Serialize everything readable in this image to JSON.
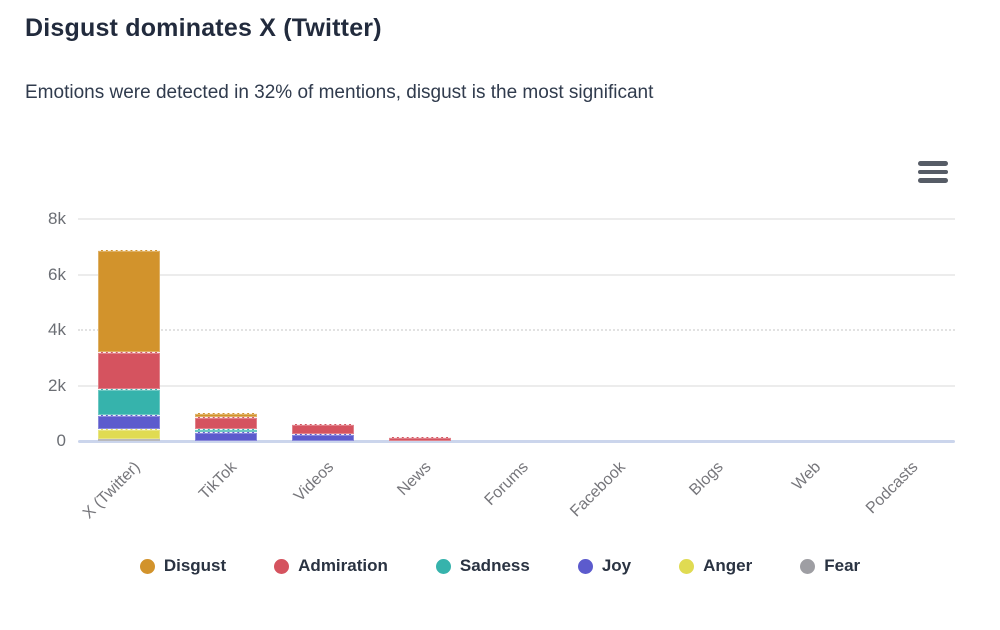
{
  "header": {
    "title": "Disgust dominates X (Twitter)",
    "subtitle": "Emotions were detected in 32% of mentions, disgust is the most significant"
  },
  "chart_data": {
    "type": "bar",
    "stacked": true,
    "title": "Disgust dominates X (Twitter)",
    "xlabel": "",
    "ylabel": "",
    "ylim": [
      0,
      8000
    ],
    "grid": "horizontal",
    "legend_position": "bottom",
    "categories": [
      "X (Twitter)",
      "TikTok",
      "Videos",
      "News",
      "Forums",
      "Facebook",
      "Blogs",
      "Web",
      "Podcasts"
    ],
    "series": [
      {
        "name": "Disgust",
        "color": "#D2932C",
        "values": [
          3650,
          150,
          0,
          0,
          0,
          0,
          0,
          0,
          0
        ]
      },
      {
        "name": "Admiration",
        "color": "#D5535F",
        "values": [
          1360,
          430,
          360,
          130,
          0,
          0,
          0,
          0,
          0
        ]
      },
      {
        "name": "Sadness",
        "color": "#36B3AC",
        "values": [
          940,
          110,
          0,
          0,
          0,
          0,
          0,
          0,
          0
        ]
      },
      {
        "name": "Joy",
        "color": "#5C5BCD",
        "values": [
          480,
          310,
          240,
          0,
          0,
          0,
          0,
          0,
          0
        ]
      },
      {
        "name": "Anger",
        "color": "#E0DB52",
        "values": [
          370,
          0,
          0,
          0,
          0,
          0,
          0,
          0,
          0
        ]
      },
      {
        "name": "Fear",
        "color": "#9E9EA3",
        "values": [
          70,
          0,
          0,
          0,
          0,
          0,
          0,
          0,
          0
        ]
      }
    ],
    "stack_order_bottom_to_top": [
      "Fear",
      "Anger",
      "Joy",
      "Sadness",
      "Admiration",
      "Disgust"
    ],
    "yticks": [
      {
        "label": "0",
        "value": 0,
        "style": "solid"
      },
      {
        "label": "2k",
        "value": 2000,
        "style": "solid"
      },
      {
        "label": "4k",
        "value": 4000,
        "style": "dotted"
      },
      {
        "label": "6k",
        "value": 6000,
        "style": "solid"
      },
      {
        "label": "8k",
        "value": 8000,
        "style": "solid"
      }
    ]
  }
}
